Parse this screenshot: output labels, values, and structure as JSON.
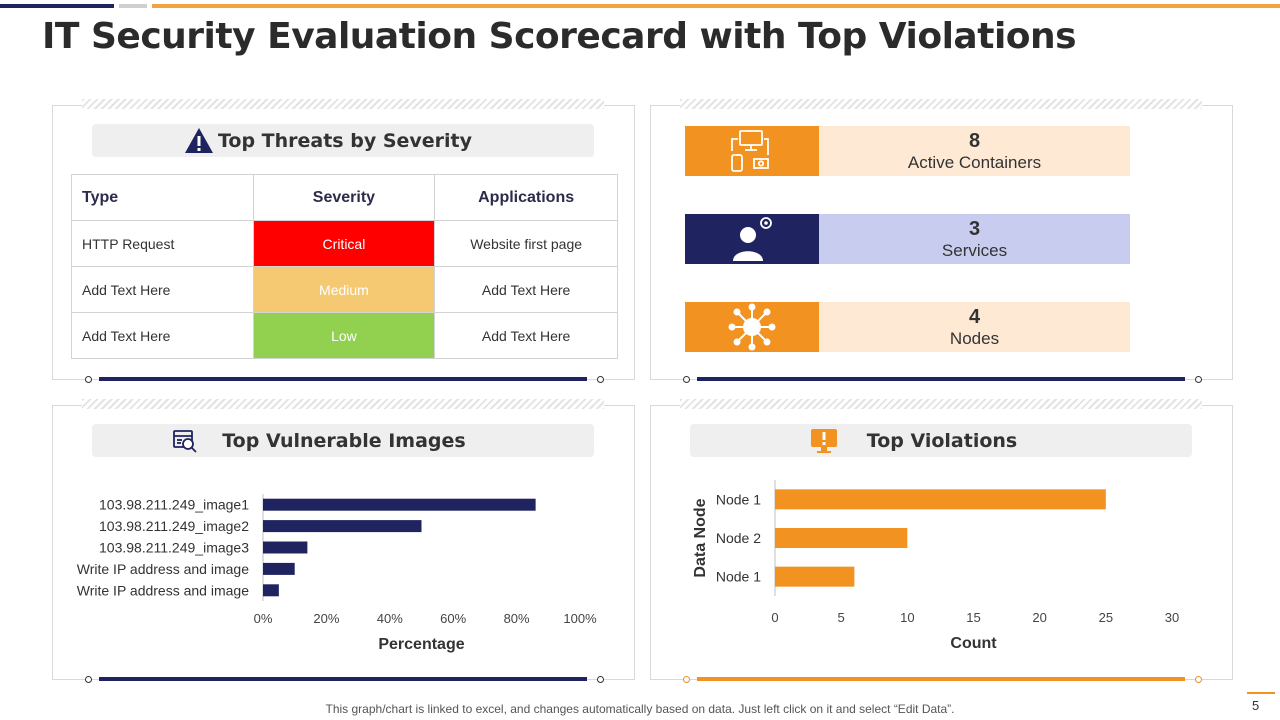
{
  "page": {
    "title": "IT Security Evaluation Scorecard with Top Violations",
    "footnote": "This graph/chart is linked to excel, and changes automatically based on data. Just left click on it and select “Edit Data”.",
    "page_number": "5"
  },
  "colors": {
    "navy": "#1f2461",
    "orange": "#f29221",
    "critical": "#ff0000",
    "medium": "#f5c872",
    "low": "#92d050",
    "light_orange": "#fde9d4",
    "light_blue": "#c8ccee"
  },
  "threats": {
    "title": "Top Threats by Severity",
    "icon": "warning-icon",
    "headers": [
      "Type",
      "Severity",
      "Applications"
    ],
    "rows": [
      {
        "type": "HTTP Request",
        "severity": "Critical",
        "applications": "Website first page"
      },
      {
        "type": "Add Text Here",
        "severity": "Medium",
        "applications": "Add Text Here"
      },
      {
        "type": "Add Text Here",
        "severity": "Low",
        "applications": "Add Text Here"
      }
    ]
  },
  "kpis": [
    {
      "value": "8",
      "label": "Active Containers",
      "icon": "devices-icon"
    },
    {
      "value": "3",
      "label": "Services",
      "icon": "user-gear-icon"
    },
    {
      "value": "4",
      "label": "Nodes",
      "icon": "network-nodes-icon"
    }
  ],
  "images_panel": {
    "title": "Top Vulnerable Images",
    "icon": "image-scan-icon"
  },
  "violations_panel": {
    "title": "Top Violations",
    "icon": "alert-monitor-icon"
  },
  "chart_data": [
    {
      "type": "bar",
      "orientation": "horizontal",
      "title": "Top Vulnerable Images",
      "categories": [
        "103.98.211.249_image1",
        "103.98.211.249_image2",
        "103.98.211.249_image3",
        "Write IP address and image",
        "Write IP address and image"
      ],
      "values": [
        86,
        50,
        14,
        10,
        5
      ],
      "xlabel": "Percentage",
      "ylabel": "",
      "xlim": [
        0,
        100
      ],
      "ticks": [
        "0%",
        "20%",
        "40%",
        "60%",
        "80%",
        "100%"
      ],
      "color": "#1f2461"
    },
    {
      "type": "bar",
      "orientation": "horizontal",
      "title": "Top Violations",
      "categories": [
        "Node 1",
        "Node 2",
        "Node 1"
      ],
      "values": [
        25,
        10,
        6
      ],
      "xlabel": "Count",
      "ylabel": "Data Node",
      "xlim": [
        0,
        30
      ],
      "ticks": [
        "0",
        "5",
        "10",
        "15",
        "20",
        "25",
        "30"
      ],
      "color": "#f29221"
    }
  ]
}
